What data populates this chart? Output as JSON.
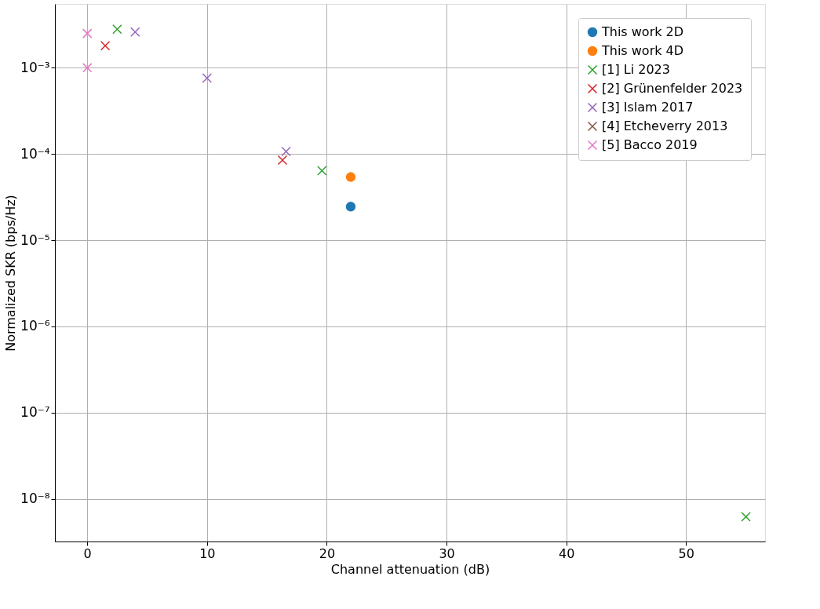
{
  "chart_data": {
    "type": "scatter",
    "xlabel": "Channel attenuation (dB)",
    "ylabel": "Normalized SKR (bps/Hz)",
    "xlim": [
      -2.7,
      56.6
    ],
    "xticks": [
      0,
      10,
      20,
      30,
      40,
      50
    ],
    "ylim": [
      3.2e-09,
      0.0055
    ],
    "log": true,
    "yticks": [
      {
        "value": 1e-08,
        "label": "10⁻⁸"
      },
      {
        "value": 1e-07,
        "label": "10⁻⁷"
      },
      {
        "value": 1e-06,
        "label": "10⁻⁶"
      },
      {
        "value": 1e-05,
        "label": "10⁻⁵"
      },
      {
        "value": 0.0001,
        "label": "10⁻⁴"
      },
      {
        "value": 0.001,
        "label": "10⁻³"
      }
    ],
    "grid": true,
    "legend": "top right",
    "series": [
      {
        "name": "This work 2D",
        "color": "#1f77b4",
        "marker": "circle",
        "x": [
          22
        ],
        "values": [
          2.45e-05
        ]
      },
      {
        "name": "This work 4D",
        "color": "#ff7f0e",
        "marker": "circle",
        "x": [
          22
        ],
        "values": [
          5.4e-05
        ]
      },
      {
        "name": "[1] Li 2023",
        "color": "#2ca02c",
        "marker": "cross",
        "x": [
          2.5,
          19.6,
          55
        ],
        "values": [
          0.0028,
          6.4e-05,
          6.2e-09
        ]
      },
      {
        "name": "[2] Grünenfelder 2023",
        "color": "#d62728",
        "marker": "cross",
        "x": [
          1.5,
          16.3
        ],
        "values": [
          0.0018,
          8.5e-05
        ]
      },
      {
        "name": "[3] Islam 2017",
        "color": "#9467bd",
        "marker": "cross",
        "x": [
          4,
          10,
          16.6
        ],
        "values": [
          0.0026,
          0.00076,
          0.000107
        ]
      },
      {
        "name": "[4] Etcheverry 2013",
        "color": "#8c564b",
        "marker": "cross"
      },
      {
        "name": "[5] Bacco 2019",
        "color": "#e377c2",
        "marker": "cross",
        "x": [
          0,
          0
        ],
        "values": [
          0.0025,
          0.001
        ]
      }
    ]
  }
}
